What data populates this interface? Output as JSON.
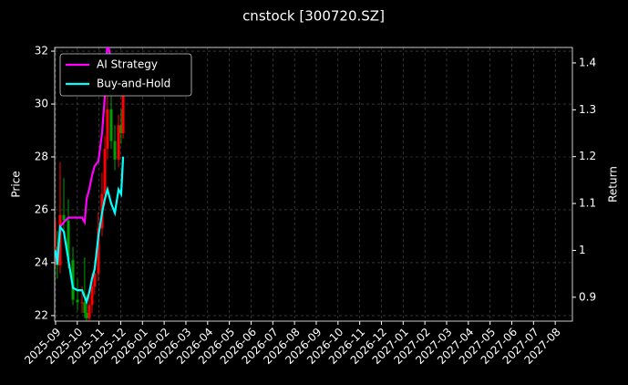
{
  "chart_data": {
    "type": "candlestick",
    "title": "cnstock [300720.SZ]",
    "y_label": "Price",
    "y2_label": "Return",
    "x": [
      0,
      0.08,
      0.21,
      0.38,
      0.59,
      0.8,
      1.01,
      1.22,
      1.34,
      1.43,
      1.55,
      1.68,
      1.8,
      1.97,
      2.14,
      2.27,
      2.39,
      2.56,
      2.73,
      2.9,
      3.02,
      3.11
    ],
    "open": [
      24.5,
      24.6,
      23.9,
      25.8,
      25.6,
      24.1,
      22.6,
      22.5,
      22.5,
      22.1,
      21.9,
      22.4,
      23.1,
      23.6,
      25.3,
      26.6,
      28.3,
      29.8,
      28.6,
      27.9,
      29.2,
      28.9
    ],
    "high": [
      25.6,
      25.2,
      27.8,
      27.2,
      26.4,
      24.6,
      23.4,
      23.1,
      24.2,
      22.8,
      22.9,
      23.6,
      24.1,
      25.9,
      27.4,
      28.8,
      30.6,
      30.3,
      29.2,
      29.6,
      29.8,
      30.6
    ],
    "low": [
      23.9,
      23.4,
      23.6,
      25.0,
      23.8,
      22.4,
      22.2,
      22.1,
      21.9,
      21.8,
      21.8,
      22.1,
      22.8,
      23.3,
      25.0,
      26.2,
      27.9,
      28.3,
      27.5,
      27.6,
      28.5,
      28.7
    ],
    "close": [
      24.6,
      23.9,
      25.8,
      25.6,
      24.1,
      22.6,
      22.5,
      22.5,
      22.1,
      21.9,
      22.4,
      23.1,
      23.6,
      25.3,
      26.6,
      28.3,
      29.8,
      28.6,
      27.9,
      29.2,
      28.9,
      30.3
    ],
    "up_color": "#ff0000",
    "down_color": "#00a000",
    "series": [
      {
        "name": "AI Strategy",
        "color": "#ff00ff",
        "axis": "y2",
        "values": [
          1.0,
          0.98,
          1.05,
          1.06,
          1.07,
          1.07,
          1.07,
          1.07,
          1.06,
          1.11,
          1.13,
          1.16,
          1.18,
          1.19,
          1.25,
          1.33,
          1.45,
          1.4,
          1.36,
          1.38,
          1.4,
          1.42
        ]
      },
      {
        "name": "Buy-and-Hold",
        "color": "#00ffff",
        "axis": "y2",
        "values": [
          1.0,
          0.97,
          1.05,
          1.04,
          0.98,
          0.92,
          0.915,
          0.915,
          0.9,
          0.89,
          0.91,
          0.94,
          0.96,
          1.03,
          1.08,
          1.11,
          1.13,
          1.1,
          1.08,
          1.13,
          1.12,
          1.2
        ]
      }
    ],
    "xlim": [
      -0.04,
      23.79
    ],
    "xticks": [
      {
        "value": 0,
        "label": "2025-09"
      },
      {
        "value": 1,
        "label": "2025-10"
      },
      {
        "value": 2,
        "label": "2025-11"
      },
      {
        "value": 3,
        "label": "2025-12"
      },
      {
        "value": 4,
        "label": "2026-01"
      },
      {
        "value": 5,
        "label": "2026-02"
      },
      {
        "value": 6,
        "label": "2026-03"
      },
      {
        "value": 7,
        "label": "2026-04"
      },
      {
        "value": 8,
        "label": "2026-05"
      },
      {
        "value": 9,
        "label": "2026-06"
      },
      {
        "value": 10,
        "label": "2026-07"
      },
      {
        "value": 11,
        "label": "2026-08"
      },
      {
        "value": 12,
        "label": "2026-09"
      },
      {
        "value": 13,
        "label": "2026-10"
      },
      {
        "value": 14,
        "label": "2026-11"
      },
      {
        "value": 15,
        "label": "2026-12"
      },
      {
        "value": 16,
        "label": "2027-01"
      },
      {
        "value": 17,
        "label": "2027-02"
      },
      {
        "value": 18,
        "label": "2027-03"
      },
      {
        "value": 19,
        "label": "2027-04"
      },
      {
        "value": 20,
        "label": "2027-05"
      },
      {
        "value": 21,
        "label": "2027-06"
      },
      {
        "value": 22,
        "label": "2027-07"
      },
      {
        "value": 23,
        "label": "2027-08"
      }
    ],
    "ylim": [
      21.79,
      32.14
    ],
    "yticks": [
      22,
      24,
      26,
      28,
      30,
      32
    ],
    "y2lim": [
      0.849,
      1.433
    ],
    "y2ticks": [
      0.9,
      1.0,
      1.1,
      1.2,
      1.3,
      1.4
    ],
    "grid": true,
    "legend": "upper left"
  }
}
